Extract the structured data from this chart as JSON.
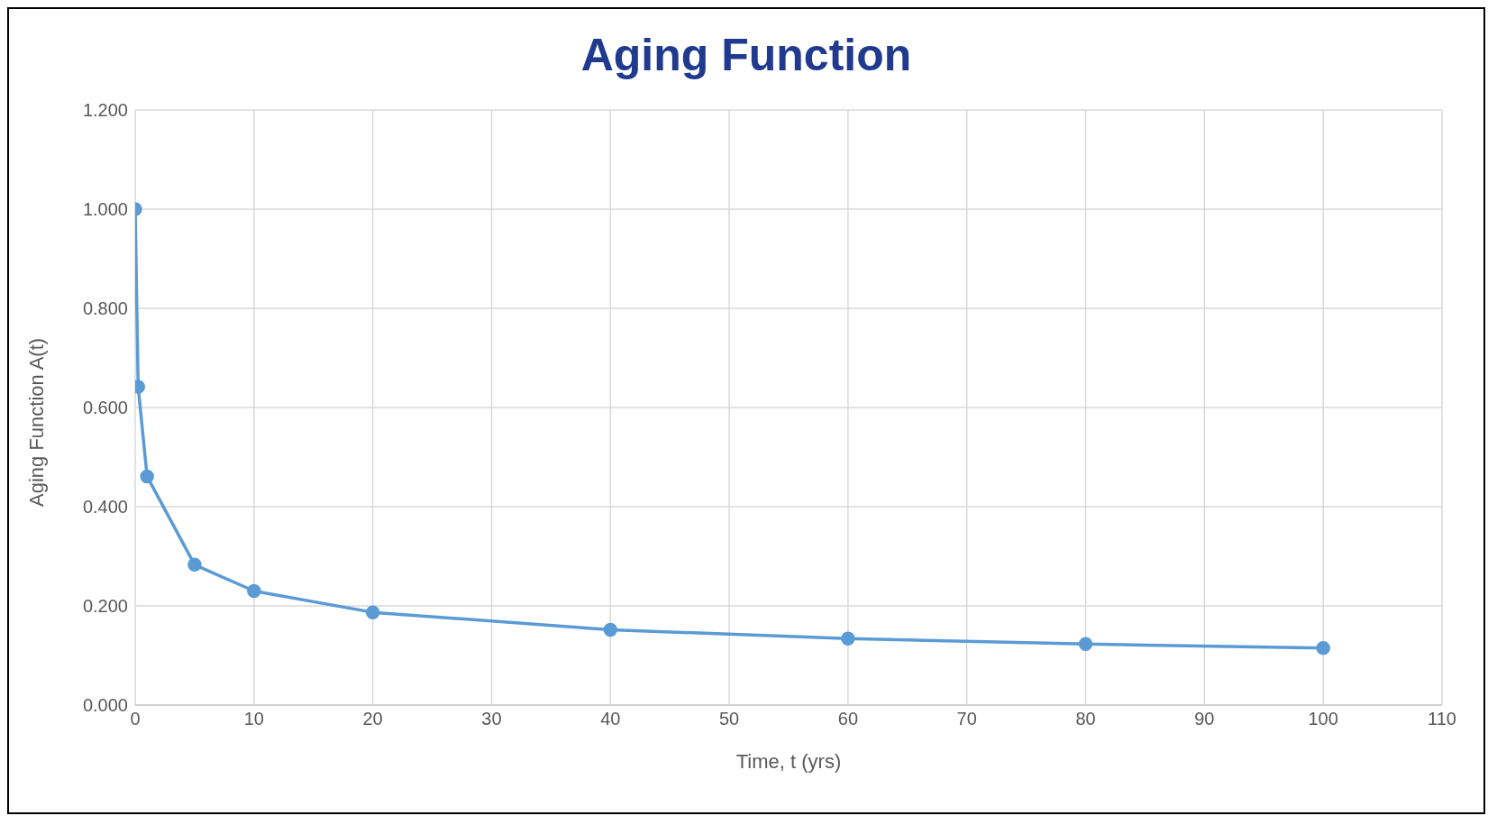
{
  "chart_data": {
    "type": "line",
    "title": "Aging Function",
    "xlabel": "Time, t (yrs)",
    "ylabel": "Aging Function A(t)",
    "x": [
      0,
      0.25,
      1,
      5,
      10,
      20,
      40,
      60,
      80,
      100
    ],
    "series": [
      {
        "color": "#5b9bd5",
        "values": [
          1.0,
          0.642,
          0.461,
          0.283,
          0.23,
          0.187,
          0.152,
          0.134,
          0.123,
          0.115
        ]
      }
    ],
    "xlim": [
      0,
      110
    ],
    "xticks": [
      0,
      10,
      20,
      30,
      40,
      50,
      60,
      70,
      80,
      90,
      100,
      110
    ],
    "ylim": [
      0,
      1.2
    ],
    "yticks": [
      {
        "value": 0,
        "label": "0.000"
      },
      {
        "value": 0.2,
        "label": "0.200"
      },
      {
        "value": 0.4,
        "label": "0.400"
      },
      {
        "value": 0.6,
        "label": "0.600"
      },
      {
        "value": 0.8,
        "label": "0.800"
      },
      {
        "value": 1.0,
        "label": "1.000"
      },
      {
        "value": 1.2,
        "label": "1.200"
      }
    ],
    "grid": true,
    "marker": "circle",
    "line_style": "solid",
    "legend": false
  }
}
